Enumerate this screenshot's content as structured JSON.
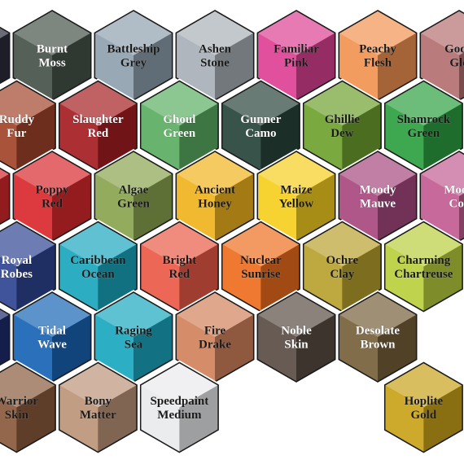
{
  "swatches": [
    {
      "row": 0,
      "col": -1,
      "lines": [],
      "color": "#2b2c3a",
      "text": "light"
    },
    {
      "row": 0,
      "col": 0,
      "lines": [
        "Burnt",
        "Moss"
      ],
      "color": "#465249",
      "text": "light"
    },
    {
      "row": 0,
      "col": 1,
      "lines": [
        "Battleship",
        "Grey"
      ],
      "color": "#8fa0ae",
      "text": "dark"
    },
    {
      "row": 0,
      "col": 2,
      "lines": [
        "Ashen",
        "Stone"
      ],
      "color": "#a9b0b8",
      "text": "dark"
    },
    {
      "row": 0,
      "col": 3,
      "lines": [
        "Familiar",
        "Pink"
      ],
      "color": "#dd4193",
      "text": "dark"
    },
    {
      "row": 0,
      "col": 4,
      "lines": [
        "Peachy",
        "Flesh"
      ],
      "color": "#f29352",
      "text": "dark"
    },
    {
      "row": 0,
      "col": 5,
      "lines": [
        "Godd",
        "Glo"
      ],
      "color": "#b3706f",
      "text": "dark"
    },
    {
      "row": 1,
      "col": 0,
      "lines": [
        "Ruddy",
        "Fur"
      ],
      "color": "#a2442a",
      "text": "light"
    },
    {
      "row": 1,
      "col": 1,
      "lines": [
        "Slaughter",
        "Red"
      ],
      "color": "#a51d22",
      "text": "light"
    },
    {
      "row": 1,
      "col": 2,
      "lines": [
        "Ghoul",
        "Green"
      ],
      "color": "#5bae62",
      "text": "light"
    },
    {
      "row": 1,
      "col": 3,
      "lines": [
        "Gunner",
        "Camo"
      ],
      "color": "#27443a",
      "text": "light"
    },
    {
      "row": 1,
      "col": 4,
      "lines": [
        "Ghillie",
        "Dew"
      ],
      "color": "#6ea12f",
      "text": "dark"
    },
    {
      "row": 1,
      "col": 5,
      "lines": [
        "Shamrock",
        "Green"
      ],
      "color": "#2ca040",
      "text": "dark"
    },
    {
      "row": 1,
      "col": 6,
      "lines": [],
      "color": "#3aa84a",
      "text": "dark"
    },
    {
      "row": 2,
      "col": -1,
      "lines": [],
      "color": "#d6292b",
      "text": "light"
    },
    {
      "row": 2,
      "col": 0,
      "lines": [
        "Poppy",
        "Red"
      ],
      "color": "#d9292e",
      "text": "dark"
    },
    {
      "row": 2,
      "col": 1,
      "lines": [
        "Algae",
        "Green"
      ],
      "color": "#8aa44e",
      "text": "dark"
    },
    {
      "row": 2,
      "col": 2,
      "lines": [
        "Ancient",
        "Honey"
      ],
      "color": "#f0b31d",
      "text": "dark"
    },
    {
      "row": 2,
      "col": 3,
      "lines": [
        "Maize",
        "Yellow"
      ],
      "color": "#f6cf1f",
      "text": "dark"
    },
    {
      "row": 2,
      "col": 4,
      "lines": [
        "Moody",
        "Mauve"
      ],
      "color": "#a8487e",
      "text": "light"
    },
    {
      "row": 2,
      "col": 5,
      "lines": [
        "Moon",
        "Cor"
      ],
      "color": "#c25d92",
      "text": "light"
    },
    {
      "row": 3,
      "col": 0,
      "lines": [
        "Royal",
        "Robes"
      ],
      "color": "#2f4592",
      "text": "light"
    },
    {
      "row": 3,
      "col": 1,
      "lines": [
        "Caribbean",
        "Ocean"
      ],
      "color": "#1ba6bd",
      "text": "dark"
    },
    {
      "row": 3,
      "col": 2,
      "lines": [
        "Bright",
        "Red"
      ],
      "color": "#ea5a46",
      "text": "dark"
    },
    {
      "row": 3,
      "col": 3,
      "lines": [
        "Nuclear",
        "Sunrise"
      ],
      "color": "#ee6d1e",
      "text": "dark"
    },
    {
      "row": 3,
      "col": 4,
      "lines": [
        "Ochre",
        "Clay"
      ],
      "color": "#b7a12e",
      "text": "dark"
    },
    {
      "row": 3,
      "col": 5,
      "lines": [
        "Charming",
        "Chartreuse"
      ],
      "color": "#b9cf3c",
      "text": "dark"
    },
    {
      "row": 3,
      "col": 6,
      "lines": [],
      "color": "#7a5b4a",
      "text": "light"
    },
    {
      "row": 4,
      "col": -1,
      "lines": [
        "e"
      ],
      "color": "#1f2b6e",
      "text": "light"
    },
    {
      "row": 4,
      "col": 0,
      "lines": [
        "Tidal",
        "Wave"
      ],
      "color": "#1764b4",
      "text": "light"
    },
    {
      "row": 4,
      "col": 1,
      "lines": [
        "Raging",
        "Sea"
      ],
      "color": "#1aa8c0",
      "text": "dark"
    },
    {
      "row": 4,
      "col": 2,
      "lines": [
        "Fire",
        "Drake"
      ],
      "color": "#d1835c",
      "text": "dark"
    },
    {
      "row": 4,
      "col": 3,
      "lines": [
        "Noble",
        "Skin"
      ],
      "color": "#5a4d44",
      "text": "light"
    },
    {
      "row": 4,
      "col": 4,
      "lines": [
        "Desolate",
        "Brown"
      ],
      "color": "#76603a",
      "text": "light"
    },
    {
      "row": 5,
      "col": 0,
      "lines": [
        "Warrior",
        "Skin"
      ],
      "color": "#8a5a3c",
      "text": "dark"
    },
    {
      "row": 5,
      "col": 1,
      "lines": [
        "Bony",
        "Matter"
      ],
      "color": "#bc9478",
      "text": "dark"
    },
    {
      "row": 5,
      "col": 2,
      "lines": [
        "Speedpaint",
        "Medium"
      ],
      "color": "#e9eaec",
      "text": "dark"
    },
    {
      "row": 5,
      "col": 5,
      "lines": [
        "Hoplite",
        "Gold"
      ],
      "color": "#c9a21a",
      "text": "dark"
    },
    {
      "row": 5,
      "col": 6,
      "lines": [],
      "color": "#1d1d1d",
      "text": "light"
    }
  ]
}
